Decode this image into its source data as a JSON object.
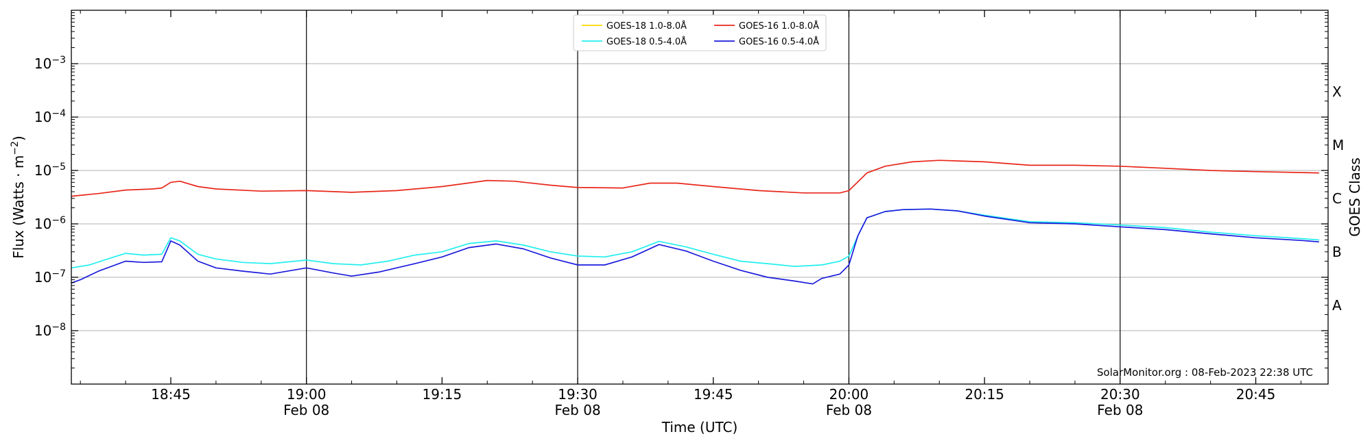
{
  "chart_data": {
    "type": "line",
    "xlabel": "Time (UTC)",
    "ylabel": "Flux (Watts · m⁻²)",
    "y2label": "GOES Class",
    "credit": "SolarMonitor.org : 08-Feb-2023 22:38 UTC",
    "x_range": [
      "18:34",
      "20:53"
    ],
    "x_unit": "time (UTC), 08-Feb-2023",
    "y_scale": "log",
    "ylim": [
      1e-09,
      0.01
    ],
    "y_ticks": [
      {
        "value": 1e-08,
        "base": "10",
        "exp": "−8"
      },
      {
        "value": 1e-07,
        "base": "10",
        "exp": "−7"
      },
      {
        "value": 1e-06,
        "base": "10",
        "exp": "−6"
      },
      {
        "value": 1e-05,
        "base": "10",
        "exp": "−5"
      },
      {
        "value": 0.0001,
        "base": "10",
        "exp": "−4"
      },
      {
        "value": 0.001,
        "base": "10",
        "exp": "−3"
      }
    ],
    "x_ticks": [
      {
        "time": "18:45",
        "label": "18:45",
        "sublabel": ""
      },
      {
        "time": "19:00",
        "label": "19:00",
        "sublabel": "Feb 08"
      },
      {
        "time": "19:15",
        "label": "19:15",
        "sublabel": ""
      },
      {
        "time": "19:30",
        "label": "19:30",
        "sublabel": "Feb 08"
      },
      {
        "time": "19:45",
        "label": "19:45",
        "sublabel": ""
      },
      {
        "time": "20:00",
        "label": "20:00",
        "sublabel": "Feb 08"
      },
      {
        "time": "20:15",
        "label": "20:15",
        "sublabel": ""
      },
      {
        "time": "20:30",
        "label": "20:30",
        "sublabel": "Feb 08"
      },
      {
        "time": "20:45",
        "label": "20:45",
        "sublabel": ""
      }
    ],
    "vertical_lines": [
      "19:00",
      "19:30",
      "20:00",
      "20:30"
    ],
    "class_labels": [
      {
        "label": "A",
        "value": 3e-08
      },
      {
        "label": "B",
        "value": 3e-07
      },
      {
        "label": "C",
        "value": 3e-06
      },
      {
        "label": "M",
        "value": 3e-05
      },
      {
        "label": "X",
        "value": 0.0003
      }
    ],
    "grid": "horizontal at decades",
    "legend_position": "top-center",
    "series": [
      {
        "name": "GOES-18 1.0-8.0Å",
        "color": "#ffd700",
        "points": []
      },
      {
        "name": "GOES-18 0.5-4.0Å",
        "color": "#22eeee",
        "points": [
          [
            "18:34",
            1.5e-07
          ],
          [
            "18:36",
            1.7e-07
          ],
          [
            "18:38",
            2.2e-07
          ],
          [
            "18:40",
            2.8e-07
          ],
          [
            "18:42",
            2.6e-07
          ],
          [
            "18:44",
            2.7e-07
          ],
          [
            "18:45",
            5.5e-07
          ],
          [
            "18:46",
            4.8e-07
          ],
          [
            "18:48",
            2.7e-07
          ],
          [
            "18:50",
            2.2e-07
          ],
          [
            "18:53",
            1.9e-07
          ],
          [
            "18:56",
            1.8e-07
          ],
          [
            "19:00",
            2.1e-07
          ],
          [
            "19:03",
            1.8e-07
          ],
          [
            "19:06",
            1.7e-07
          ],
          [
            "19:09",
            2e-07
          ],
          [
            "19:12",
            2.6e-07
          ],
          [
            "19:15",
            3e-07
          ],
          [
            "19:18",
            4.3e-07
          ],
          [
            "19:21",
            4.8e-07
          ],
          [
            "19:24",
            4e-07
          ],
          [
            "19:27",
            3e-07
          ],
          [
            "19:30",
            2.5e-07
          ],
          [
            "19:33",
            2.4e-07
          ],
          [
            "19:36",
            3e-07
          ],
          [
            "19:39",
            4.7e-07
          ],
          [
            "19:42",
            3.7e-07
          ],
          [
            "19:45",
            2.7e-07
          ],
          [
            "19:48",
            2e-07
          ],
          [
            "19:51",
            1.8e-07
          ],
          [
            "19:54",
            1.6e-07
          ],
          [
            "19:57",
            1.7e-07
          ],
          [
            "19:59",
            2e-07
          ],
          [
            "20:00",
            2.5e-07
          ],
          [
            "20:01",
            6e-07
          ],
          [
            "20:02",
            1.3e-06
          ],
          [
            "20:04",
            1.7e-06
          ],
          [
            "20:06",
            1.85e-06
          ],
          [
            "20:09",
            1.9e-06
          ],
          [
            "20:12",
            1.75e-06
          ],
          [
            "20:15",
            1.45e-06
          ],
          [
            "20:20",
            1.1e-06
          ],
          [
            "20:25",
            1.05e-06
          ],
          [
            "20:30",
            9.5e-07
          ],
          [
            "20:35",
            8.5e-07
          ],
          [
            "20:40",
            7e-07
          ],
          [
            "20:45",
            6e-07
          ],
          [
            "20:50",
            5.3e-07
          ],
          [
            "20:52",
            5e-07
          ]
        ]
      },
      {
        "name": "GOES-16 1.0-8.0Å",
        "color": "#e8261a",
        "points": [
          [
            "18:34",
            3.3e-06
          ],
          [
            "18:37",
            3.7e-06
          ],
          [
            "18:40",
            4.3e-06
          ],
          [
            "18:43",
            4.5e-06
          ],
          [
            "18:44",
            4.7e-06
          ],
          [
            "18:45",
            6e-06
          ],
          [
            "18:46",
            6.3e-06
          ],
          [
            "18:48",
            5e-06
          ],
          [
            "18:50",
            4.5e-06
          ],
          [
            "18:55",
            4.1e-06
          ],
          [
            "19:00",
            4.2e-06
          ],
          [
            "19:05",
            3.9e-06
          ],
          [
            "19:10",
            4.2e-06
          ],
          [
            "19:15",
            5e-06
          ],
          [
            "19:20",
            6.5e-06
          ],
          [
            "19:23",
            6.3e-06
          ],
          [
            "19:27",
            5.3e-06
          ],
          [
            "19:30",
            4.8e-06
          ],
          [
            "19:35",
            4.7e-06
          ],
          [
            "19:38",
            5.8e-06
          ],
          [
            "19:41",
            5.8e-06
          ],
          [
            "19:45",
            5e-06
          ],
          [
            "19:50",
            4.2e-06
          ],
          [
            "19:55",
            3.8e-06
          ],
          [
            "19:59",
            3.8e-06
          ],
          [
            "20:00",
            4.2e-06
          ],
          [
            "20:02",
            9e-06
          ],
          [
            "20:04",
            1.2e-05
          ],
          [
            "20:07",
            1.45e-05
          ],
          [
            "20:10",
            1.55e-05
          ],
          [
            "20:15",
            1.45e-05
          ],
          [
            "20:20",
            1.25e-05
          ],
          [
            "20:25",
            1.25e-05
          ],
          [
            "20:30",
            1.2e-05
          ],
          [
            "20:35",
            1.1e-05
          ],
          [
            "20:40",
            1e-05
          ],
          [
            "20:45",
            9.5e-06
          ],
          [
            "20:52",
            9e-06
          ]
        ]
      },
      {
        "name": "GOES-16 0.5-4.0Å",
        "color": "#1a1adc",
        "points": [
          [
            "18:34",
            7.8e-08
          ],
          [
            "18:35",
            9e-08
          ],
          [
            "18:37",
            1.3e-07
          ],
          [
            "18:40",
            2e-07
          ],
          [
            "18:42",
            1.9e-07
          ],
          [
            "18:44",
            1.95e-07
          ],
          [
            "18:45",
            4.8e-07
          ],
          [
            "18:46",
            4e-07
          ],
          [
            "18:48",
            2e-07
          ],
          [
            "18:50",
            1.5e-07
          ],
          [
            "18:53",
            1.3e-07
          ],
          [
            "18:56",
            1.15e-07
          ],
          [
            "19:00",
            1.5e-07
          ],
          [
            "19:03",
            1.2e-07
          ],
          [
            "19:05",
            1.05e-07
          ],
          [
            "19:08",
            1.25e-07
          ],
          [
            "19:12",
            1.8e-07
          ],
          [
            "19:15",
            2.4e-07
          ],
          [
            "19:18",
            3.6e-07
          ],
          [
            "19:21",
            4.2e-07
          ],
          [
            "19:24",
            3.4e-07
          ],
          [
            "19:27",
            2.3e-07
          ],
          [
            "19:30",
            1.7e-07
          ],
          [
            "19:33",
            1.7e-07
          ],
          [
            "19:36",
            2.4e-07
          ],
          [
            "19:39",
            4.1e-07
          ],
          [
            "19:42",
            3.1e-07
          ],
          [
            "19:45",
            2e-07
          ],
          [
            "19:48",
            1.35e-07
          ],
          [
            "19:51",
            1e-07
          ],
          [
            "19:54",
            8.5e-08
          ],
          [
            "19:56",
            7.5e-08
          ],
          [
            "19:57",
            9.5e-08
          ],
          [
            "19:59",
            1.15e-07
          ],
          [
            "20:00",
            1.7e-07
          ],
          [
            "20:01",
            6e-07
          ],
          [
            "20:02",
            1.3e-06
          ],
          [
            "20:04",
            1.7e-06
          ],
          [
            "20:06",
            1.85e-06
          ],
          [
            "20:09",
            1.9e-06
          ],
          [
            "20:12",
            1.75e-06
          ],
          [
            "20:15",
            1.4e-06
          ],
          [
            "20:20",
            1.05e-06
          ],
          [
            "20:25",
            1e-06
          ],
          [
            "20:30",
            8.8e-07
          ],
          [
            "20:35",
            7.8e-07
          ],
          [
            "20:40",
            6.5e-07
          ],
          [
            "20:45",
            5.5e-07
          ],
          [
            "20:50",
            4.9e-07
          ],
          [
            "20:52",
            4.6e-07
          ]
        ]
      }
    ]
  }
}
